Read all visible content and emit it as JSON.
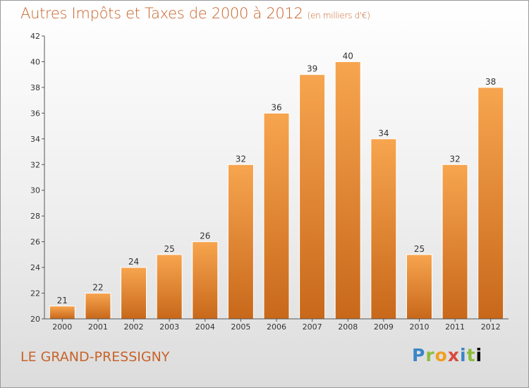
{
  "header": {
    "title": "Autres Impôts et Taxes de 2000 à 2012",
    "unit_note": "(en milliers d'€)"
  },
  "footer": {
    "town": "LE GRAND-PRESSIGNY",
    "brand_letters": [
      "P",
      "r",
      "o",
      "x",
      "i",
      "t",
      "i"
    ]
  },
  "colors": {
    "bar_top": "#f7a54f",
    "bar_bottom": "#c8681a",
    "accent": "#c8632a"
  },
  "chart_data": {
    "type": "bar",
    "title": "Autres Impôts et Taxes de 2000 à 2012",
    "categories": [
      "2000",
      "2001",
      "2002",
      "2003",
      "2004",
      "2005",
      "2006",
      "2007",
      "2008",
      "2009",
      "2010",
      "2011",
      "2012"
    ],
    "values": [
      21,
      22,
      24,
      25,
      26,
      32,
      36,
      39,
      40,
      34,
      25,
      32,
      38
    ],
    "ylim": [
      20,
      42
    ],
    "yticks": [
      20,
      22,
      24,
      26,
      28,
      30,
      32,
      34,
      36,
      38,
      40,
      42
    ],
    "grid": false,
    "legend": "none"
  }
}
